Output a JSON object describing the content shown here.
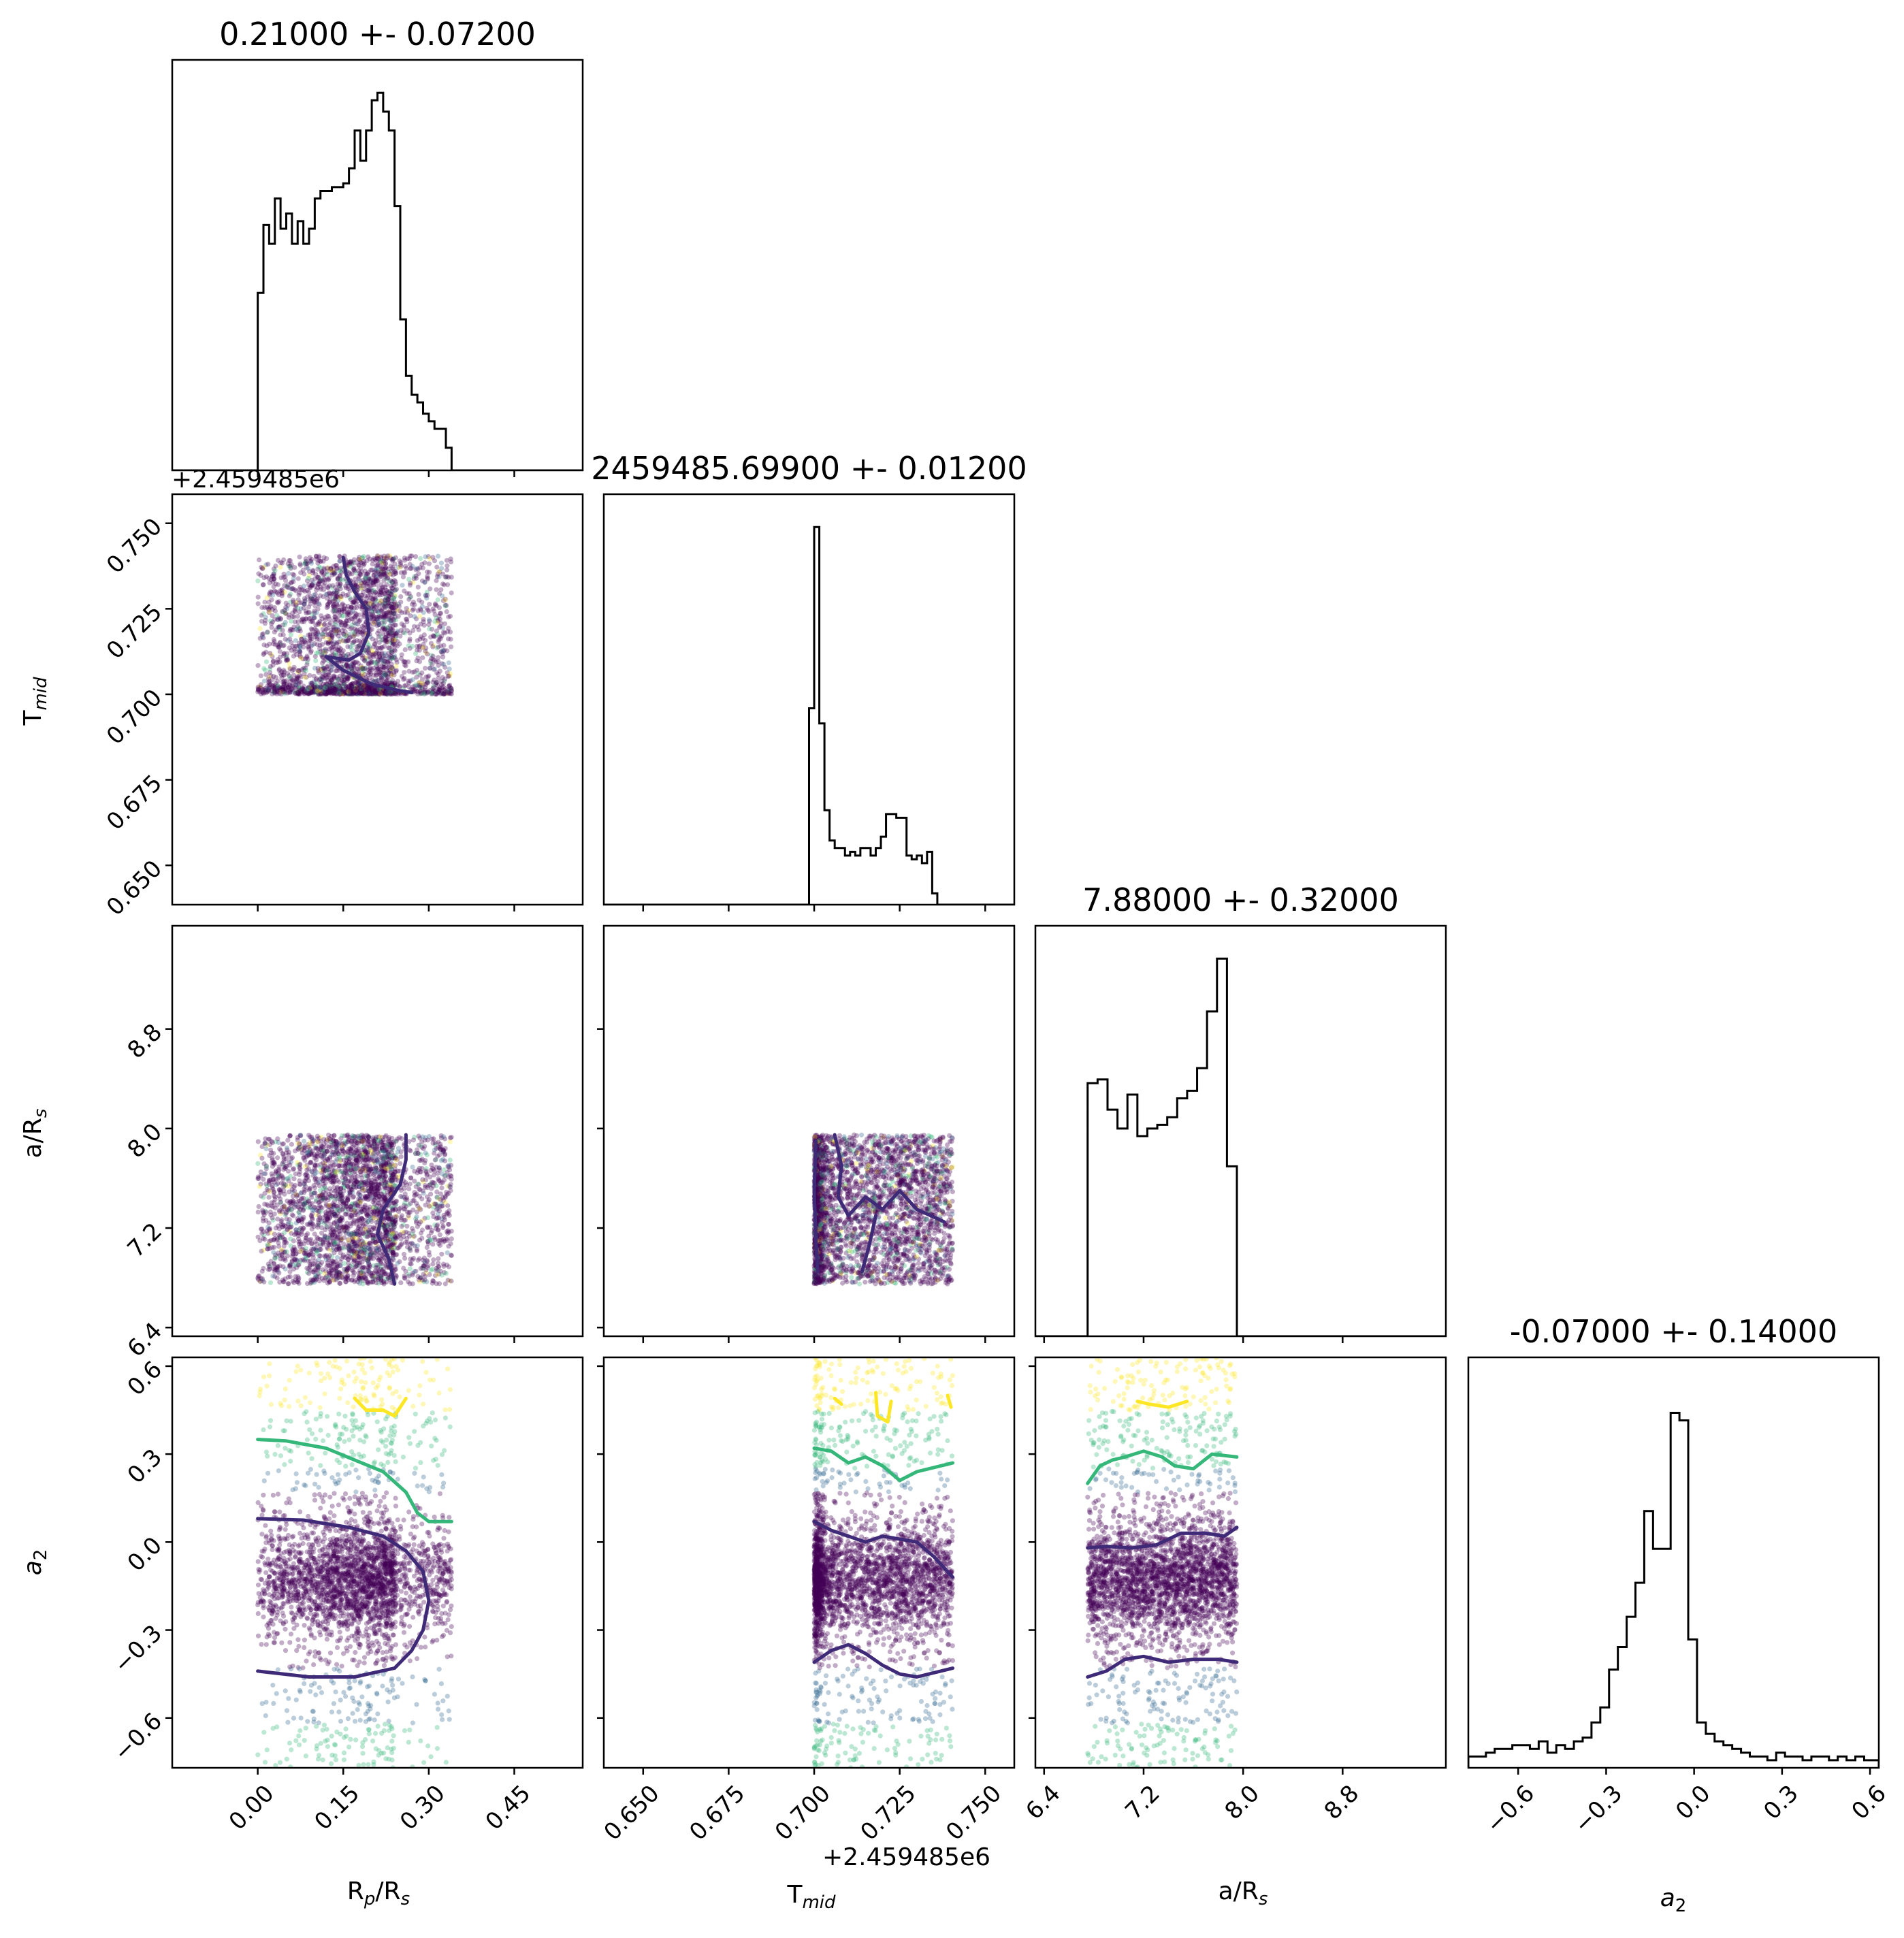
{
  "chart_data": {
    "type": "scatter",
    "subtype": "corner-plot",
    "parameters": [
      {
        "key": "rp",
        "label": "R_p/R_s",
        "ticks": [
          0.0,
          0.15,
          0.3,
          0.45
        ],
        "tick_labels": [
          "0.00",
          "0.15",
          "0.30",
          "0.45"
        ],
        "range": [
          -0.15,
          0.57
        ]
      },
      {
        "key": "tmid",
        "label": "T_mid",
        "ticks": [
          0.65,
          0.675,
          0.7,
          0.725,
          0.75
        ],
        "tick_labels": [
          "0.650",
          "0.675",
          "0.700",
          "0.725",
          "0.750"
        ],
        "range": [
          0.6385,
          0.7585
        ],
        "offset": "+2.459485e6"
      },
      {
        "key": "ars",
        "label": "a/R_s",
        "ticks": [
          6.4,
          7.2,
          8.0,
          8.8
        ],
        "tick_labels": [
          "6.4",
          "7.2",
          "8.0",
          "8.8"
        ],
        "range": [
          6.33,
          9.63
        ]
      },
      {
        "key": "a2",
        "label": "a_2",
        "ticks": [
          -0.6,
          -0.3,
          0.0,
          0.3,
          0.6
        ],
        "tick_labels": [
          "−0.6",
          "−0.3",
          "0.0",
          "0.3",
          "0.6"
        ],
        "range": [
          -0.77,
          0.63
        ]
      }
    ],
    "titles": [
      "0.21000 +- 0.07200",
      "2459485.69900 +- 0.01200",
      "7.88000 +- 0.32000",
      "-0.07000 +- 0.14000"
    ],
    "histograms": [
      {
        "param": "rp",
        "bin_edges": [
          0.0,
          0.01,
          0.02,
          0.03,
          0.04,
          0.05,
          0.06,
          0.07,
          0.08,
          0.09,
          0.1,
          0.11,
          0.12,
          0.13,
          0.14,
          0.15,
          0.16,
          0.17,
          0.18,
          0.19,
          0.2,
          0.21,
          0.22,
          0.23,
          0.24,
          0.25,
          0.26,
          0.27,
          0.28,
          0.29,
          0.3,
          0.31,
          0.32,
          0.33,
          0.34
        ],
        "counts": [
          0.47,
          0.65,
          0.6,
          0.72,
          0.64,
          0.68,
          0.6,
          0.66,
          0.6,
          0.64,
          0.72,
          0.74,
          0.74,
          0.75,
          0.75,
          0.76,
          0.8,
          0.9,
          0.82,
          0.9,
          0.98,
          1.0,
          0.95,
          0.9,
          0.7,
          0.4,
          0.25,
          0.2,
          0.18,
          0.15,
          0.13,
          0.11,
          0.11,
          0.06
        ]
      },
      {
        "param": "tmid",
        "bin_edges": [
          0.6985,
          0.7,
          0.7015,
          0.703,
          0.7045,
          0.706,
          0.7075,
          0.709,
          0.7105,
          0.712,
          0.7135,
          0.715,
          0.7165,
          0.718,
          0.7195,
          0.721,
          0.7225,
          0.724,
          0.7255,
          0.727,
          0.7285,
          0.73,
          0.7315,
          0.733,
          0.7345,
          0.736,
          0.7375
        ],
        "counts": [
          0.52,
          1.0,
          0.48,
          0.25,
          0.17,
          0.15,
          0.15,
          0.13,
          0.14,
          0.13,
          0.15,
          0.15,
          0.13,
          0.15,
          0.18,
          0.24,
          0.24,
          0.23,
          0.23,
          0.13,
          0.12,
          0.13,
          0.11,
          0.14,
          0.03,
          0.0
        ]
      },
      {
        "param": "ars",
        "bin_edges": [
          6.75,
          6.83,
          6.91,
          6.99,
          7.07,
          7.15,
          7.23,
          7.31,
          7.39,
          7.47,
          7.55,
          7.63,
          7.71,
          7.79,
          7.87,
          7.95
        ],
        "counts": [
          0.67,
          0.68,
          0.6,
          0.55,
          0.64,
          0.53,
          0.55,
          0.56,
          0.58,
          0.63,
          0.65,
          0.71,
          0.86,
          1.0,
          0.45
        ]
      },
      {
        "param": "a2",
        "bin_edges": [
          -0.77,
          -0.74,
          -0.71,
          -0.68,
          -0.65,
          -0.62,
          -0.59,
          -0.56,
          -0.53,
          -0.5,
          -0.47,
          -0.44,
          -0.41,
          -0.38,
          -0.35,
          -0.32,
          -0.29,
          -0.26,
          -0.23,
          -0.2,
          -0.17,
          -0.14,
          -0.11,
          -0.08,
          -0.05,
          -0.02,
          0.01,
          0.04,
          0.07,
          0.1,
          0.13,
          0.16,
          0.19,
          0.22,
          0.25,
          0.28,
          0.31,
          0.34,
          0.37,
          0.4,
          0.43,
          0.46,
          0.49,
          0.52,
          0.55,
          0.58,
          0.61,
          0.63
        ],
        "counts": [
          0.03,
          0.03,
          0.04,
          0.05,
          0.05,
          0.06,
          0.06,
          0.05,
          0.07,
          0.04,
          0.06,
          0.05,
          0.07,
          0.08,
          0.12,
          0.16,
          0.26,
          0.32,
          0.4,
          0.49,
          0.68,
          0.58,
          0.58,
          0.94,
          0.92,
          0.34,
          0.12,
          0.09,
          0.07,
          0.06,
          0.05,
          0.04,
          0.03,
          0.03,
          0.02,
          0.04,
          0.03,
          0.03,
          0.02,
          0.03,
          0.03,
          0.02,
          0.03,
          0.02,
          0.03,
          0.02,
          0.02
        ]
      }
    ],
    "samples": {
      "n": 3000,
      "bounds": {
        "rp": [
          0.0,
          0.34
        ],
        "tmid": [
          0.7,
          0.7405
        ],
        "ars": [
          6.75,
          7.95
        ],
        "a2": [
          -0.77,
          0.63
        ]
      },
      "color_by": "a2",
      "colormap": [
        "#440154",
        "#31688e",
        "#35b779",
        "#fde725"
      ]
    },
    "contours": [
      {
        "x": "rp",
        "y": "tmid",
        "color": "#3f2a78",
        "points": [
          [
            0.15,
            0.74
          ],
          [
            0.155,
            0.735
          ],
          [
            0.17,
            0.73
          ],
          [
            0.19,
            0.725
          ],
          [
            0.195,
            0.718
          ],
          [
            0.18,
            0.712
          ],
          [
            0.16,
            0.71
          ],
          [
            0.12,
            0.711
          ],
          [
            0.15,
            0.707
          ],
          [
            0.2,
            0.703
          ],
          [
            0.25,
            0.701
          ],
          [
            0.27,
            0.7005
          ]
        ]
      },
      {
        "x": "rp",
        "y": "ars",
        "color": "#3f2a78",
        "points": [
          [
            0.26,
            7.95
          ],
          [
            0.26,
            7.75
          ],
          [
            0.25,
            7.55
          ],
          [
            0.22,
            7.35
          ],
          [
            0.21,
            7.15
          ],
          [
            0.23,
            6.95
          ],
          [
            0.24,
            6.75
          ]
        ]
      },
      {
        "x": "tmid",
        "y": "ars",
        "color": "#3f2a78",
        "points": [
          [
            0.7005,
            7.9
          ],
          [
            0.7,
            7.5
          ],
          [
            0.7005,
            7.1
          ],
          [
            0.701,
            6.85
          ]
        ]
      },
      {
        "x": "tmid",
        "y": "ars",
        "color": "#3f2a78",
        "points": [
          [
            0.706,
            7.95
          ],
          [
            0.708,
            7.7
          ],
          [
            0.707,
            7.45
          ],
          [
            0.71,
            7.3
          ],
          [
            0.715,
            7.45
          ],
          [
            0.72,
            7.35
          ],
          [
            0.725,
            7.5
          ],
          [
            0.73,
            7.35
          ],
          [
            0.738,
            7.25
          ]
        ]
      },
      {
        "x": "tmid",
        "y": "ars",
        "color": "#3f2a78",
        "points": [
          [
            0.718,
            7.3
          ],
          [
            0.716,
            7.05
          ],
          [
            0.714,
            6.85
          ]
        ]
      },
      {
        "x": "rp",
        "y": "a2",
        "color": "#fde725",
        "points": [
          [
            0.17,
            0.49
          ],
          [
            0.19,
            0.45
          ],
          [
            0.22,
            0.45
          ],
          [
            0.24,
            0.43
          ],
          [
            0.26,
            0.49
          ]
        ]
      },
      {
        "x": "rp",
        "y": "a2",
        "color": "#35b779",
        "points": [
          [
            0.0,
            0.35
          ],
          [
            0.05,
            0.345
          ],
          [
            0.12,
            0.32
          ],
          [
            0.17,
            0.28
          ],
          [
            0.22,
            0.24
          ],
          [
            0.26,
            0.17
          ],
          [
            0.28,
            0.1
          ],
          [
            0.3,
            0.07
          ],
          [
            0.34,
            0.07
          ]
        ]
      },
      {
        "x": "rp",
        "y": "a2",
        "color": "#3f2a78",
        "points": [
          [
            0.0,
            0.08
          ],
          [
            0.08,
            0.075
          ],
          [
            0.16,
            0.05
          ],
          [
            0.22,
            0.02
          ],
          [
            0.26,
            -0.03
          ],
          [
            0.29,
            -0.1
          ],
          [
            0.3,
            -0.2
          ],
          [
            0.29,
            -0.3
          ],
          [
            0.27,
            -0.37
          ],
          [
            0.24,
            -0.43
          ],
          [
            0.17,
            -0.46
          ],
          [
            0.09,
            -0.46
          ],
          [
            0.0,
            -0.44
          ]
        ]
      },
      {
        "x": "tmid",
        "y": "a2",
        "color": "#fde725",
        "points": [
          [
            0.706,
            0.49
          ],
          [
            0.708,
            0.47
          ]
        ]
      },
      {
        "x": "tmid",
        "y": "a2",
        "color": "#fde725",
        "points": [
          [
            0.718,
            0.51
          ],
          [
            0.7185,
            0.43
          ],
          [
            0.7215,
            0.41
          ],
          [
            0.7225,
            0.48
          ]
        ]
      },
      {
        "x": "tmid",
        "y": "a2",
        "color": "#fde725",
        "points": [
          [
            0.739,
            0.5
          ],
          [
            0.74,
            0.46
          ]
        ]
      },
      {
        "x": "tmid",
        "y": "a2",
        "color": "#35b779",
        "points": [
          [
            0.7,
            0.32
          ],
          [
            0.705,
            0.31
          ],
          [
            0.71,
            0.27
          ],
          [
            0.715,
            0.29
          ],
          [
            0.72,
            0.26
          ],
          [
            0.725,
            0.21
          ],
          [
            0.73,
            0.24
          ],
          [
            0.7405,
            0.27
          ]
        ]
      },
      {
        "x": "tmid",
        "y": "a2",
        "color": "#3f2a78",
        "points": [
          [
            0.7,
            0.07
          ],
          [
            0.705,
            0.04
          ],
          [
            0.71,
            0.02
          ],
          [
            0.715,
            0.0
          ],
          [
            0.72,
            0.02
          ],
          [
            0.725,
            0.01
          ],
          [
            0.73,
            0.0
          ],
          [
            0.735,
            -0.05
          ],
          [
            0.7405,
            -0.12
          ]
        ]
      },
      {
        "x": "tmid",
        "y": "a2",
        "color": "#3f2a78",
        "points": [
          [
            0.7,
            -0.41
          ],
          [
            0.705,
            -0.37
          ],
          [
            0.71,
            -0.35
          ],
          [
            0.715,
            -0.38
          ],
          [
            0.72,
            -0.42
          ],
          [
            0.725,
            -0.45
          ],
          [
            0.73,
            -0.46
          ],
          [
            0.7405,
            -0.43
          ]
        ]
      },
      {
        "x": "ars",
        "y": "a2",
        "color": "#fde725",
        "points": [
          [
            7.15,
            0.48
          ],
          [
            7.25,
            0.47
          ],
          [
            7.4,
            0.46
          ],
          [
            7.55,
            0.48
          ]
        ]
      },
      {
        "x": "ars",
        "y": "a2",
        "color": "#35b779",
        "points": [
          [
            6.75,
            0.2
          ],
          [
            6.85,
            0.26
          ],
          [
            6.95,
            0.28
          ],
          [
            7.05,
            0.29
          ],
          [
            7.2,
            0.31
          ],
          [
            7.35,
            0.29
          ],
          [
            7.45,
            0.26
          ],
          [
            7.6,
            0.25
          ],
          [
            7.75,
            0.3
          ],
          [
            7.95,
            0.29
          ]
        ]
      },
      {
        "x": "ars",
        "y": "a2",
        "color": "#3f2a78",
        "points": [
          [
            6.75,
            -0.02
          ],
          [
            6.9,
            -0.015
          ],
          [
            7.1,
            -0.02
          ],
          [
            7.3,
            -0.01
          ],
          [
            7.5,
            0.03
          ],
          [
            7.7,
            0.03
          ],
          [
            7.85,
            0.02
          ],
          [
            7.95,
            0.05
          ]
        ]
      },
      {
        "x": "ars",
        "y": "a2",
        "color": "#3f2a78",
        "points": [
          [
            6.75,
            -0.46
          ],
          [
            6.9,
            -0.44
          ],
          [
            7.05,
            -0.4
          ],
          [
            7.2,
            -0.39
          ],
          [
            7.4,
            -0.41
          ],
          [
            7.6,
            -0.4
          ],
          [
            7.8,
            -0.4
          ],
          [
            7.95,
            -0.41
          ]
        ]
      }
    ],
    "grid": false,
    "legend": "none"
  },
  "labels": {
    "rp_xlabel": "R",
    "rp_xlabel_sub": "p",
    "rp_xlabel_tail": "/R",
    "rp_xlabel_sub2": "s",
    "tmid_xlabel": "T",
    "tmid_xlabel_sub": "mid",
    "ars_xlabel": "a/R",
    "ars_xlabel_sub": "s",
    "a2_xlabel": "a",
    "a2_xlabel_sub": "2",
    "tmid_ylabel": "T",
    "tmid_ylabel_sub": "mid",
    "ars_ylabel": "a/R",
    "ars_ylabel_sub": "s",
    "a2_ylabel": "a",
    "a2_ylabel_sub": "2",
    "tmid_offset_y": "+2.459485e6",
    "tmid_offset_x": "+2.459485e6"
  }
}
